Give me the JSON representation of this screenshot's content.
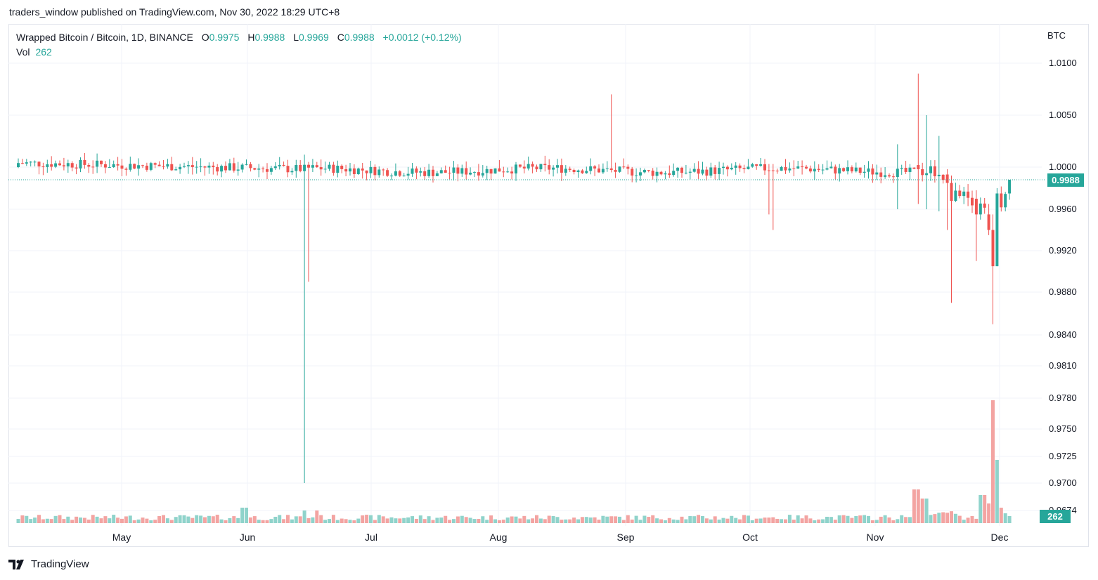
{
  "publisher": "traders_window published on TradingView.com, Nov 30, 2022 18:29 UTC+8",
  "legend": {
    "symbol": "Wrapped Bitcoin / Bitcoin, 1D, BINANCE",
    "o_label": "O",
    "o_value": "0.9975",
    "h_label": "H",
    "h_value": "0.9988",
    "l_label": "L",
    "l_value": "0.9969",
    "c_label": "C",
    "c_value": "0.9988",
    "change": "+0.0012 (+0.12%)",
    "vol_label": "Vol",
    "vol_value": "262"
  },
  "currency": "BTC",
  "price_axis": [
    "1.0100",
    "1.0050",
    "1.0000",
    "0.9960",
    "0.9920",
    "0.9880",
    "0.9840",
    "0.9810",
    "0.9780",
    "0.9750",
    "0.9725",
    "0.9700",
    "0.9674"
  ],
  "last_price": "0.9988",
  "last_volume": "262",
  "time_axis": [
    "May",
    "Jun",
    "Jul",
    "Aug",
    "Sep",
    "Oct",
    "Nov",
    "Dec"
  ],
  "logo_text": "TradingView",
  "colors": {
    "up": "#26a69a",
    "down": "#ef5350",
    "up_volume": "#8fd3cb",
    "down_volume": "#f3a4a2",
    "grid": "#f0f3fa"
  },
  "chart_data": {
    "type": "candlestick",
    "title": "Wrapped Bitcoin / Bitcoin, 1D, BINANCE",
    "ylabel": "BTC",
    "ylim": [
      0.9674,
      1.011
    ],
    "xlim_dates": [
      "2022-04-05",
      "2022-11-30"
    ],
    "key_points": [
      {
        "date": "2022-06-13",
        "low": 0.97,
        "note": "long lower wick"
      },
      {
        "date": "2022-06-14",
        "low": 0.989
      },
      {
        "date": "2022-08-26",
        "high": 1.007
      },
      {
        "date": "2022-11-09",
        "high": 1.009
      },
      {
        "date": "2022-11-16",
        "low": 0.987
      },
      {
        "date": "2022-11-22",
        "low": 0.985
      },
      {
        "date": "2022-11-30",
        "open": 0.9975,
        "high": 0.9988,
        "low": 0.9969,
        "close": 0.9988,
        "volume": 262
      }
    ],
    "series": [
      {
        "name": "Price",
        "typical_level": 1.0
      },
      {
        "name": "Vol",
        "last": 262
      }
    ]
  }
}
